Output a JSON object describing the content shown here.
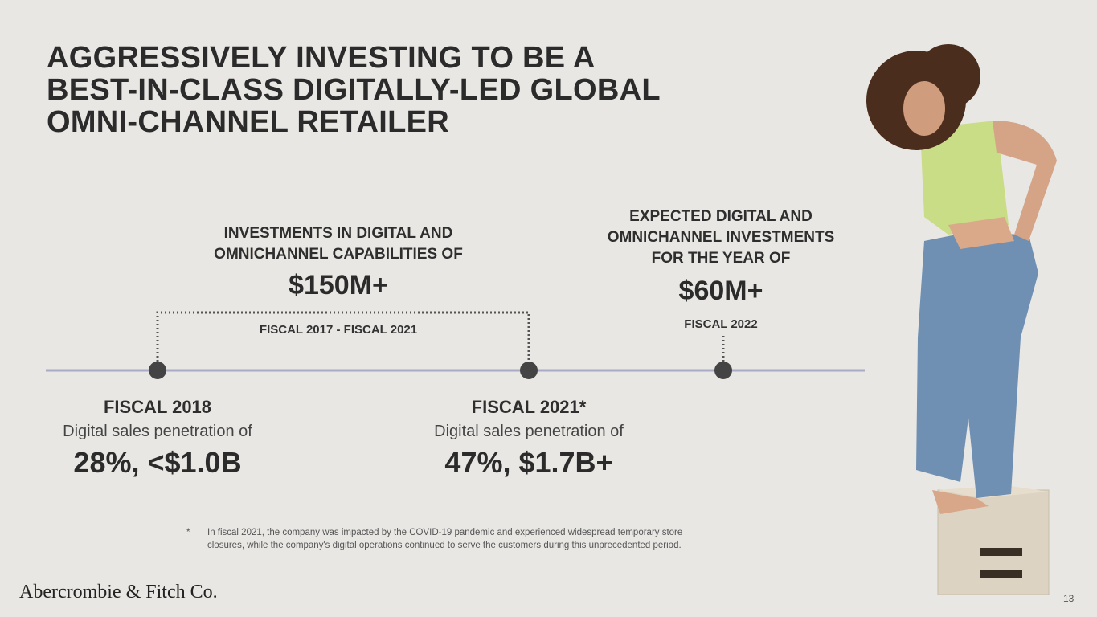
{
  "title": {
    "lines": [
      "AGGRESSIVELY INVESTING TO BE A",
      "BEST-IN-CLASS DIGITALLY-LED GLOBAL",
      "OMNI-CHANNEL RETAILER"
    ]
  },
  "investments": {
    "heading": [
      "INVESTMENTS IN DIGITAL AND",
      "OMNICHANNEL CAPABILITIES OF"
    ],
    "amount": "$150M+",
    "period": "FISCAL 2017 - FISCAL 2021"
  },
  "expected": {
    "heading": [
      "EXPECTED DIGITAL AND",
      "OMNICHANNEL INVESTMENTS",
      "FOR THE YEAR OF"
    ],
    "amount": "$60M+",
    "period": "FISCAL 2022"
  },
  "milestones": [
    {
      "year": "FISCAL 2018",
      "description": "Digital sales penetration of",
      "value": "28%, <$1.0B"
    },
    {
      "year": "FISCAL 2021*",
      "description": "Digital sales penetration of",
      "value": "47%, $1.7B+"
    }
  ],
  "footnote": {
    "marker": "*",
    "lines": [
      "In fiscal 2021, the company was impacted by the COVID-19 pandemic and experienced widespread temporary store",
      "closures, while the company's digital operations continued to serve the customers during this unprecedented period."
    ]
  },
  "logo": "Abercrombie & Fitch Co.",
  "page_number": "13"
}
